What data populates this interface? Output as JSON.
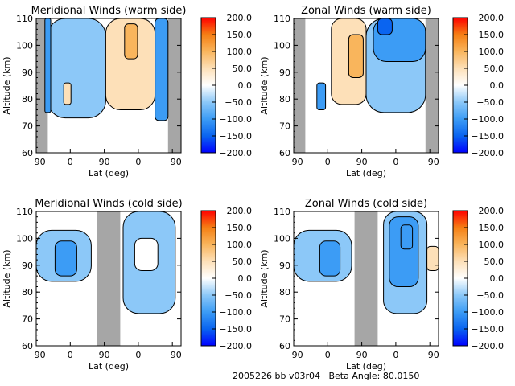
{
  "footer": {
    "text": "2005226 bb v03r04   Beta Angle: 80.0150"
  },
  "colorbar": {
    "ticks": [
      "200.0",
      "150.0",
      "100.0",
      "50.0",
      "0.0",
      "-50.0",
      "-100.0",
      "-150.0",
      "-200.0"
    ],
    "range": [
      -200,
      200
    ],
    "colors": [
      "#0000ff",
      "#0a64f0",
      "#3c9cf5",
      "#8cc8f8",
      "#ffffff",
      "#fde0b8",
      "#f9b55c",
      "#f57f14",
      "#ff0000"
    ]
  },
  "chart_data": [
    {
      "type": "heatmap",
      "title": "Meridional Winds (warm side)",
      "xlabel": "Lat (deg)",
      "ylabel": "Altitude (km)",
      "xticks": [
        "-90",
        "0",
        "90",
        "0",
        "-90"
      ],
      "yticks": [
        "60",
        "70",
        "80",
        "90",
        "100",
        "110"
      ],
      "ylim": [
        60,
        110
      ],
      "colorbar_range": [
        -200,
        200
      ],
      "contours": [
        {
          "x0": 0.08,
          "x1": 0.48,
          "y0": 73,
          "y1": 110,
          "value": -40
        },
        {
          "x0": 0.06,
          "x1": 0.1,
          "y0": 75,
          "y1": 110,
          "value": -120
        },
        {
          "x0": 0.19,
          "x1": 0.24,
          "y0": 78,
          "y1": 86,
          "value": 40
        },
        {
          "x0": 0.48,
          "x1": 0.82,
          "y0": 76,
          "y1": 110,
          "value": 40
        },
        {
          "x0": 0.61,
          "x1": 0.7,
          "y0": 95,
          "y1": 108,
          "value": 80
        },
        {
          "x0": 0.82,
          "x1": 0.91,
          "y0": 72,
          "y1": 110,
          "value": -120
        }
      ],
      "masked_regions": [
        [
          0.0,
          0.08
        ],
        [
          0.91,
          1.0
        ]
      ]
    },
    {
      "type": "heatmap",
      "title": "Zonal Winds (warm side)",
      "xlabel": "Lat (deg)",
      "ylabel": "Altitude (km)",
      "xticks": [
        "-90",
        "0",
        "90",
        "0",
        "-90"
      ],
      "yticks": [
        "60",
        "70",
        "80",
        "90",
        "100",
        "110"
      ],
      "ylim": [
        60,
        110
      ],
      "colorbar_range": [
        -200,
        200
      ],
      "contours": [
        {
          "x0": 0.26,
          "x1": 0.5,
          "y0": 78,
          "y1": 110,
          "value": 40
        },
        {
          "x0": 0.38,
          "x1": 0.48,
          "y0": 88,
          "y1": 104,
          "value": 90
        },
        {
          "x0": 0.16,
          "x1": 0.22,
          "y0": 76,
          "y1": 86,
          "value": -120
        },
        {
          "x0": 0.5,
          "x1": 0.91,
          "y0": 75,
          "y1": 110,
          "value": -60
        },
        {
          "x0": 0.55,
          "x1": 0.91,
          "y0": 94,
          "y1": 110,
          "value": -120
        },
        {
          "x0": 0.58,
          "x1": 0.68,
          "y0": 104,
          "y1": 110,
          "value": -170
        }
      ],
      "masked_regions": [
        [
          0.0,
          0.08
        ],
        [
          0.91,
          1.0
        ]
      ]
    },
    {
      "type": "heatmap",
      "title": "Meridional Winds (cold side)",
      "xlabel": "Lat (deg)",
      "ylabel": "Altitude (km)",
      "xticks": [
        "-90",
        "0",
        "90",
        "0",
        "-90"
      ],
      "yticks": [
        "60",
        "70",
        "80",
        "90",
        "100",
        "110"
      ],
      "ylim": [
        60,
        110
      ],
      "colorbar_range": [
        -200,
        200
      ],
      "contours": [
        {
          "x0": 0.0,
          "x1": 0.38,
          "y0": 84,
          "y1": 103,
          "value": -40
        },
        {
          "x0": 0.13,
          "x1": 0.28,
          "y0": 86,
          "y1": 99,
          "value": -90
        },
        {
          "x0": 0.6,
          "x1": 0.96,
          "y0": 72,
          "y1": 110,
          "value": -40
        },
        {
          "x0": 0.68,
          "x1": 0.84,
          "y0": 88,
          "y1": 100,
          "value": 0
        }
      ],
      "masked_regions": [
        [
          0.42,
          0.58
        ]
      ]
    },
    {
      "type": "heatmap",
      "title": "Zonal Winds (cold side)",
      "xlabel": "Lat (deg)",
      "ylabel": "Altitude (km)",
      "xticks": [
        "-90",
        "0",
        "90",
        "0",
        "-90"
      ],
      "yticks": [
        "60",
        "70",
        "80",
        "90",
        "100",
        "110"
      ],
      "ylim": [
        60,
        110
      ],
      "colorbar_range": [
        -200,
        200
      ],
      "contours": [
        {
          "x0": 0.0,
          "x1": 0.4,
          "y0": 84,
          "y1": 103,
          "value": -40
        },
        {
          "x0": 0.18,
          "x1": 0.32,
          "y0": 86,
          "y1": 99,
          "value": -90
        },
        {
          "x0": 0.62,
          "x1": 0.92,
          "y0": 72,
          "y1": 110,
          "value": -40
        },
        {
          "x0": 0.66,
          "x1": 0.86,
          "y0": 82,
          "y1": 108,
          "value": -80
        },
        {
          "x0": 0.74,
          "x1": 0.82,
          "y0": 96,
          "y1": 105,
          "value": -120
        },
        {
          "x0": 0.92,
          "x1": 1.0,
          "y0": 88,
          "y1": 97,
          "value": 30
        }
      ],
      "masked_regions": [
        [
          0.42,
          0.58
        ]
      ]
    }
  ]
}
